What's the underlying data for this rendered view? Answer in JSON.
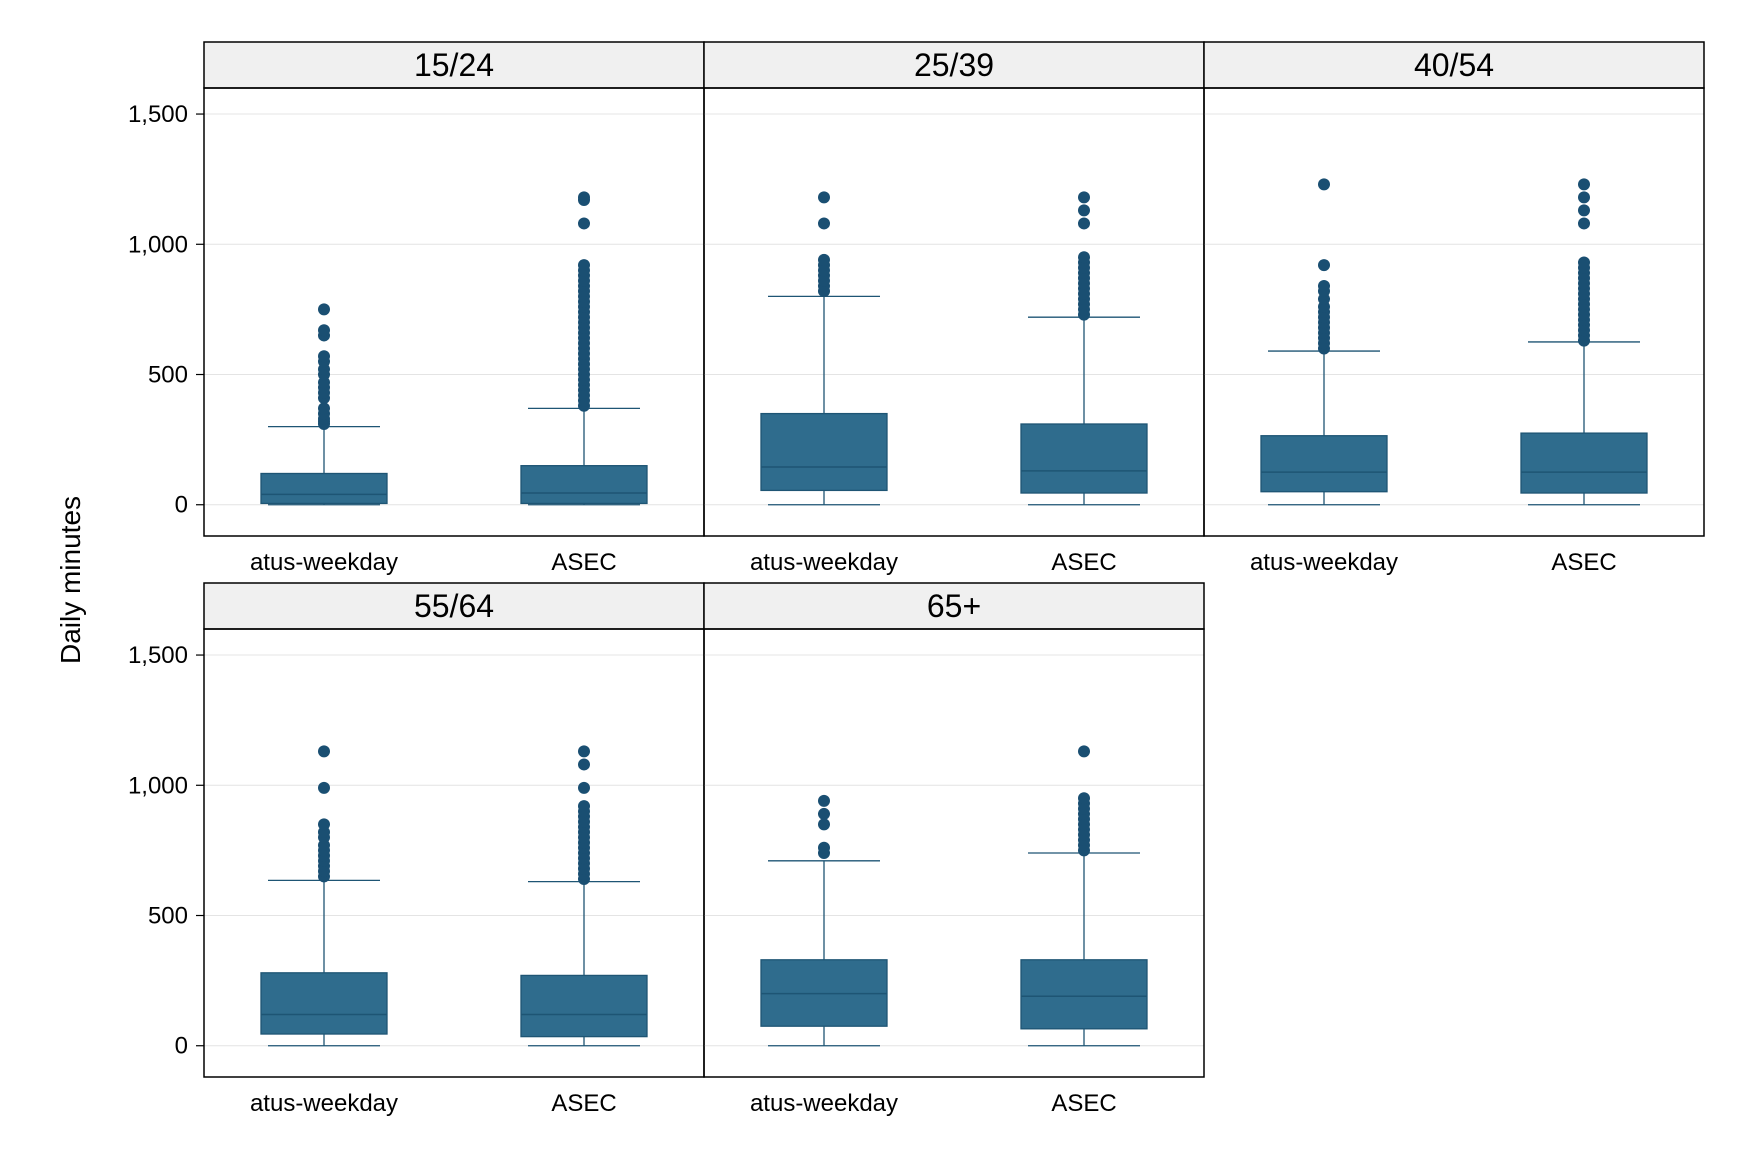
{
  "chart_data": {
    "type": "box",
    "ylabel": "Daily minutes",
    "categories": [
      "atus-weekday",
      "ASEC"
    ],
    "y_ticks": [
      0,
      500,
      1000,
      1500
    ],
    "y_tick_labels": [
      "0",
      "500",
      "1,000",
      "1,500"
    ],
    "ylim": [
      -120,
      1600
    ],
    "grid": true,
    "box_color": "#2f6c8d",
    "box_stroke": "#1e5574",
    "outlier_color": "#1a4f72",
    "strip_color": "#f0f0f0",
    "panels": [
      {
        "title": "15/24",
        "boxes": [
          {
            "category": "atus-weekday",
            "min": 0,
            "q1": 5,
            "median": 40,
            "q3": 120,
            "whisker_high": 300,
            "outliers": [
              310,
              320,
              330,
              350,
              370,
              410,
              430,
              450,
              470,
              500,
              520,
              550,
              570,
              650,
              670,
              750
            ]
          },
          {
            "category": "ASEC",
            "min": 0,
            "q1": 5,
            "median": 45,
            "q3": 150,
            "whisker_high": 370,
            "outliers": [
              380,
              400,
              420,
              440,
              460,
              480,
              500,
              520,
              540,
              560,
              580,
              600,
              620,
              640,
              660,
              680,
              700,
              720,
              740,
              760,
              780,
              800,
              820,
              840,
              860,
              880,
              900,
              920,
              1080,
              1170,
              1180
            ]
          }
        ]
      },
      {
        "title": "25/39",
        "boxes": [
          {
            "category": "atus-weekday",
            "min": 0,
            "q1": 55,
            "median": 145,
            "q3": 350,
            "whisker_high": 800,
            "outliers": [
              820,
              840,
              860,
              880,
              900,
              920,
              940,
              1080,
              1180
            ]
          },
          {
            "category": "ASEC",
            "min": 0,
            "q1": 45,
            "median": 130,
            "q3": 310,
            "whisker_high": 720,
            "outliers": [
              730,
              750,
              770,
              790,
              810,
              830,
              850,
              870,
              890,
              910,
              930,
              950,
              1080,
              1130,
              1180
            ]
          }
        ]
      },
      {
        "title": "40/54",
        "boxes": [
          {
            "category": "atus-weekday",
            "min": 0,
            "q1": 50,
            "median": 125,
            "q3": 265,
            "whisker_high": 590,
            "outliers": [
              600,
              620,
              640,
              660,
              680,
              700,
              720,
              740,
              760,
              790,
              820,
              840,
              920,
              1230
            ]
          },
          {
            "category": "ASEC",
            "min": 0,
            "q1": 45,
            "median": 125,
            "q3": 275,
            "whisker_high": 625,
            "outliers": [
              630,
              650,
              670,
              690,
              710,
              730,
              750,
              770,
              790,
              810,
              830,
              850,
              870,
              890,
              910,
              930,
              1080,
              1130,
              1180,
              1230
            ]
          }
        ]
      },
      {
        "title": "55/64",
        "boxes": [
          {
            "category": "atus-weekday",
            "min": 0,
            "q1": 45,
            "median": 120,
            "q3": 280,
            "whisker_high": 635,
            "outliers": [
              650,
              670,
              690,
              710,
              730,
              750,
              770,
              800,
              820,
              850,
              990,
              1130
            ]
          },
          {
            "category": "ASEC",
            "min": 0,
            "q1": 35,
            "median": 120,
            "q3": 270,
            "whisker_high": 630,
            "outliers": [
              640,
              660,
              680,
              700,
              720,
              740,
              760,
              780,
              800,
              820,
              840,
              860,
              880,
              900,
              920,
              990,
              1080,
              1130
            ]
          }
        ]
      },
      {
        "title": "65+",
        "boxes": [
          {
            "category": "atus-weekday",
            "min": 0,
            "q1": 75,
            "median": 200,
            "q3": 330,
            "whisker_high": 710,
            "outliers": [
              740,
              760,
              850,
              890,
              940
            ]
          },
          {
            "category": "ASEC",
            "min": 0,
            "q1": 65,
            "median": 190,
            "q3": 330,
            "whisker_high": 740,
            "outliers": [
              750,
              770,
              790,
              810,
              830,
              850,
              870,
              890,
              910,
              930,
              950,
              1130
            ]
          }
        ]
      }
    ]
  }
}
